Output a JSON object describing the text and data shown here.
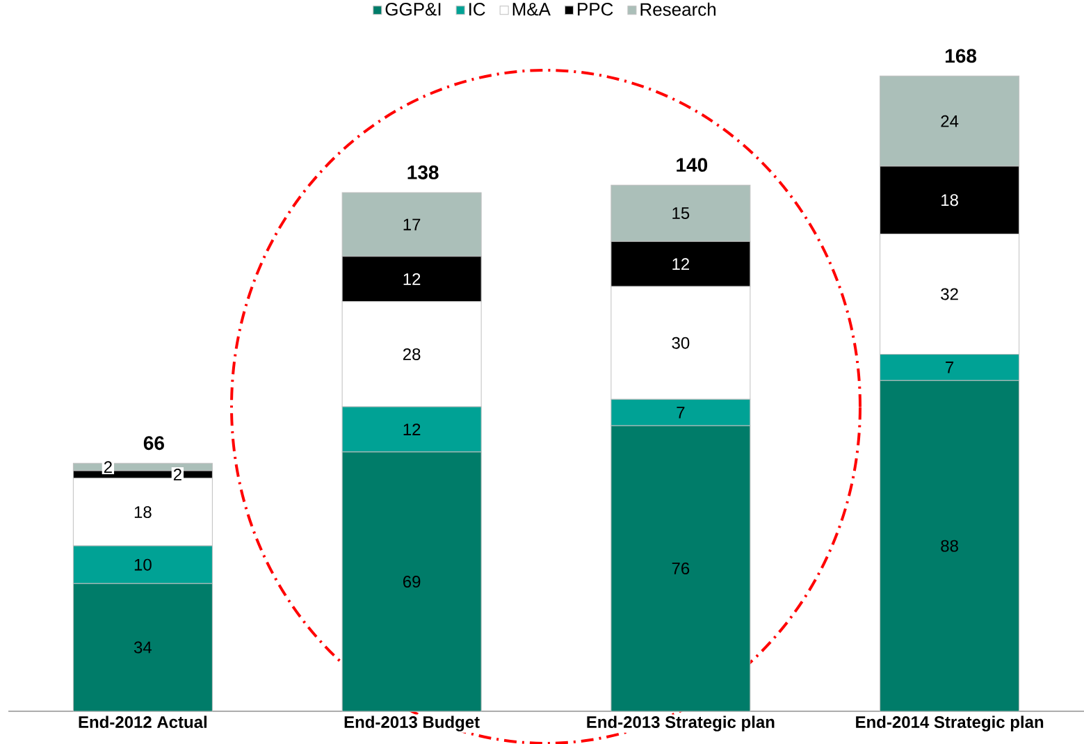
{
  "chart_data": {
    "type": "bar",
    "stacked": true,
    "data_labels": true,
    "legend": "top",
    "categories": [
      "End-2012 Actual",
      "End-2013 Budget",
      "End-2013 Strategic plan",
      "End-2014 Strategic plan"
    ],
    "series": [
      {
        "name": "GGP&I",
        "color": "#007c69",
        "values": [
          34,
          69,
          76,
          88
        ]
      },
      {
        "name": "IC",
        "color": "#00a295",
        "values": [
          10,
          12,
          7,
          7
        ]
      },
      {
        "name": "M&A",
        "color": "#ffffff",
        "values": [
          18,
          28,
          30,
          32
        ]
      },
      {
        "name": "PPC",
        "color": "#000000",
        "values": [
          2,
          12,
          12,
          18
        ]
      },
      {
        "name": "Research",
        "color": "#abbfb9",
        "values": [
          2,
          17,
          15,
          24
        ]
      }
    ],
    "totals": [
      "66",
      "138",
      "140",
      "168"
    ]
  }
}
